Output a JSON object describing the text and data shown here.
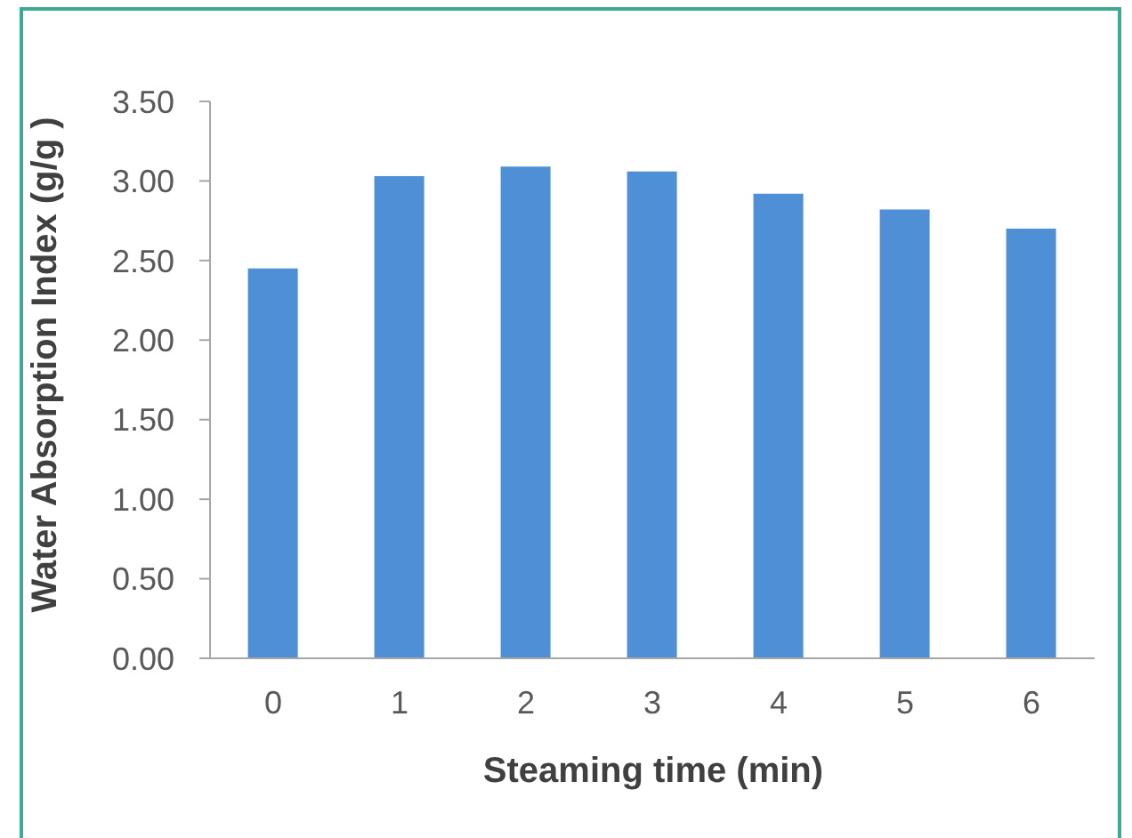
{
  "chart_data": {
    "type": "bar",
    "xlabel": "Steaming time (min)",
    "ylabel": "Water Absorption Index (g/g )",
    "categories": [
      "0",
      "1",
      "2",
      "3",
      "4",
      "5",
      "6"
    ],
    "values": [
      2.45,
      3.03,
      3.09,
      3.06,
      2.92,
      2.82,
      2.7
    ],
    "color": "#4f8fd6",
    "ylim": [
      0,
      3.5
    ],
    "yticks": [
      {
        "value": 0,
        "label": "0.00"
      },
      {
        "value": 0.5,
        "label": "0.50"
      },
      {
        "value": 1,
        "label": "1.00"
      },
      {
        "value": 1.5,
        "label": "1.50"
      },
      {
        "value": 2,
        "label": "2.00"
      },
      {
        "value": 2.5,
        "label": "2.50"
      },
      {
        "value": 3,
        "label": "3.00"
      },
      {
        "value": 3.5,
        "label": "3.50"
      }
    ]
  }
}
